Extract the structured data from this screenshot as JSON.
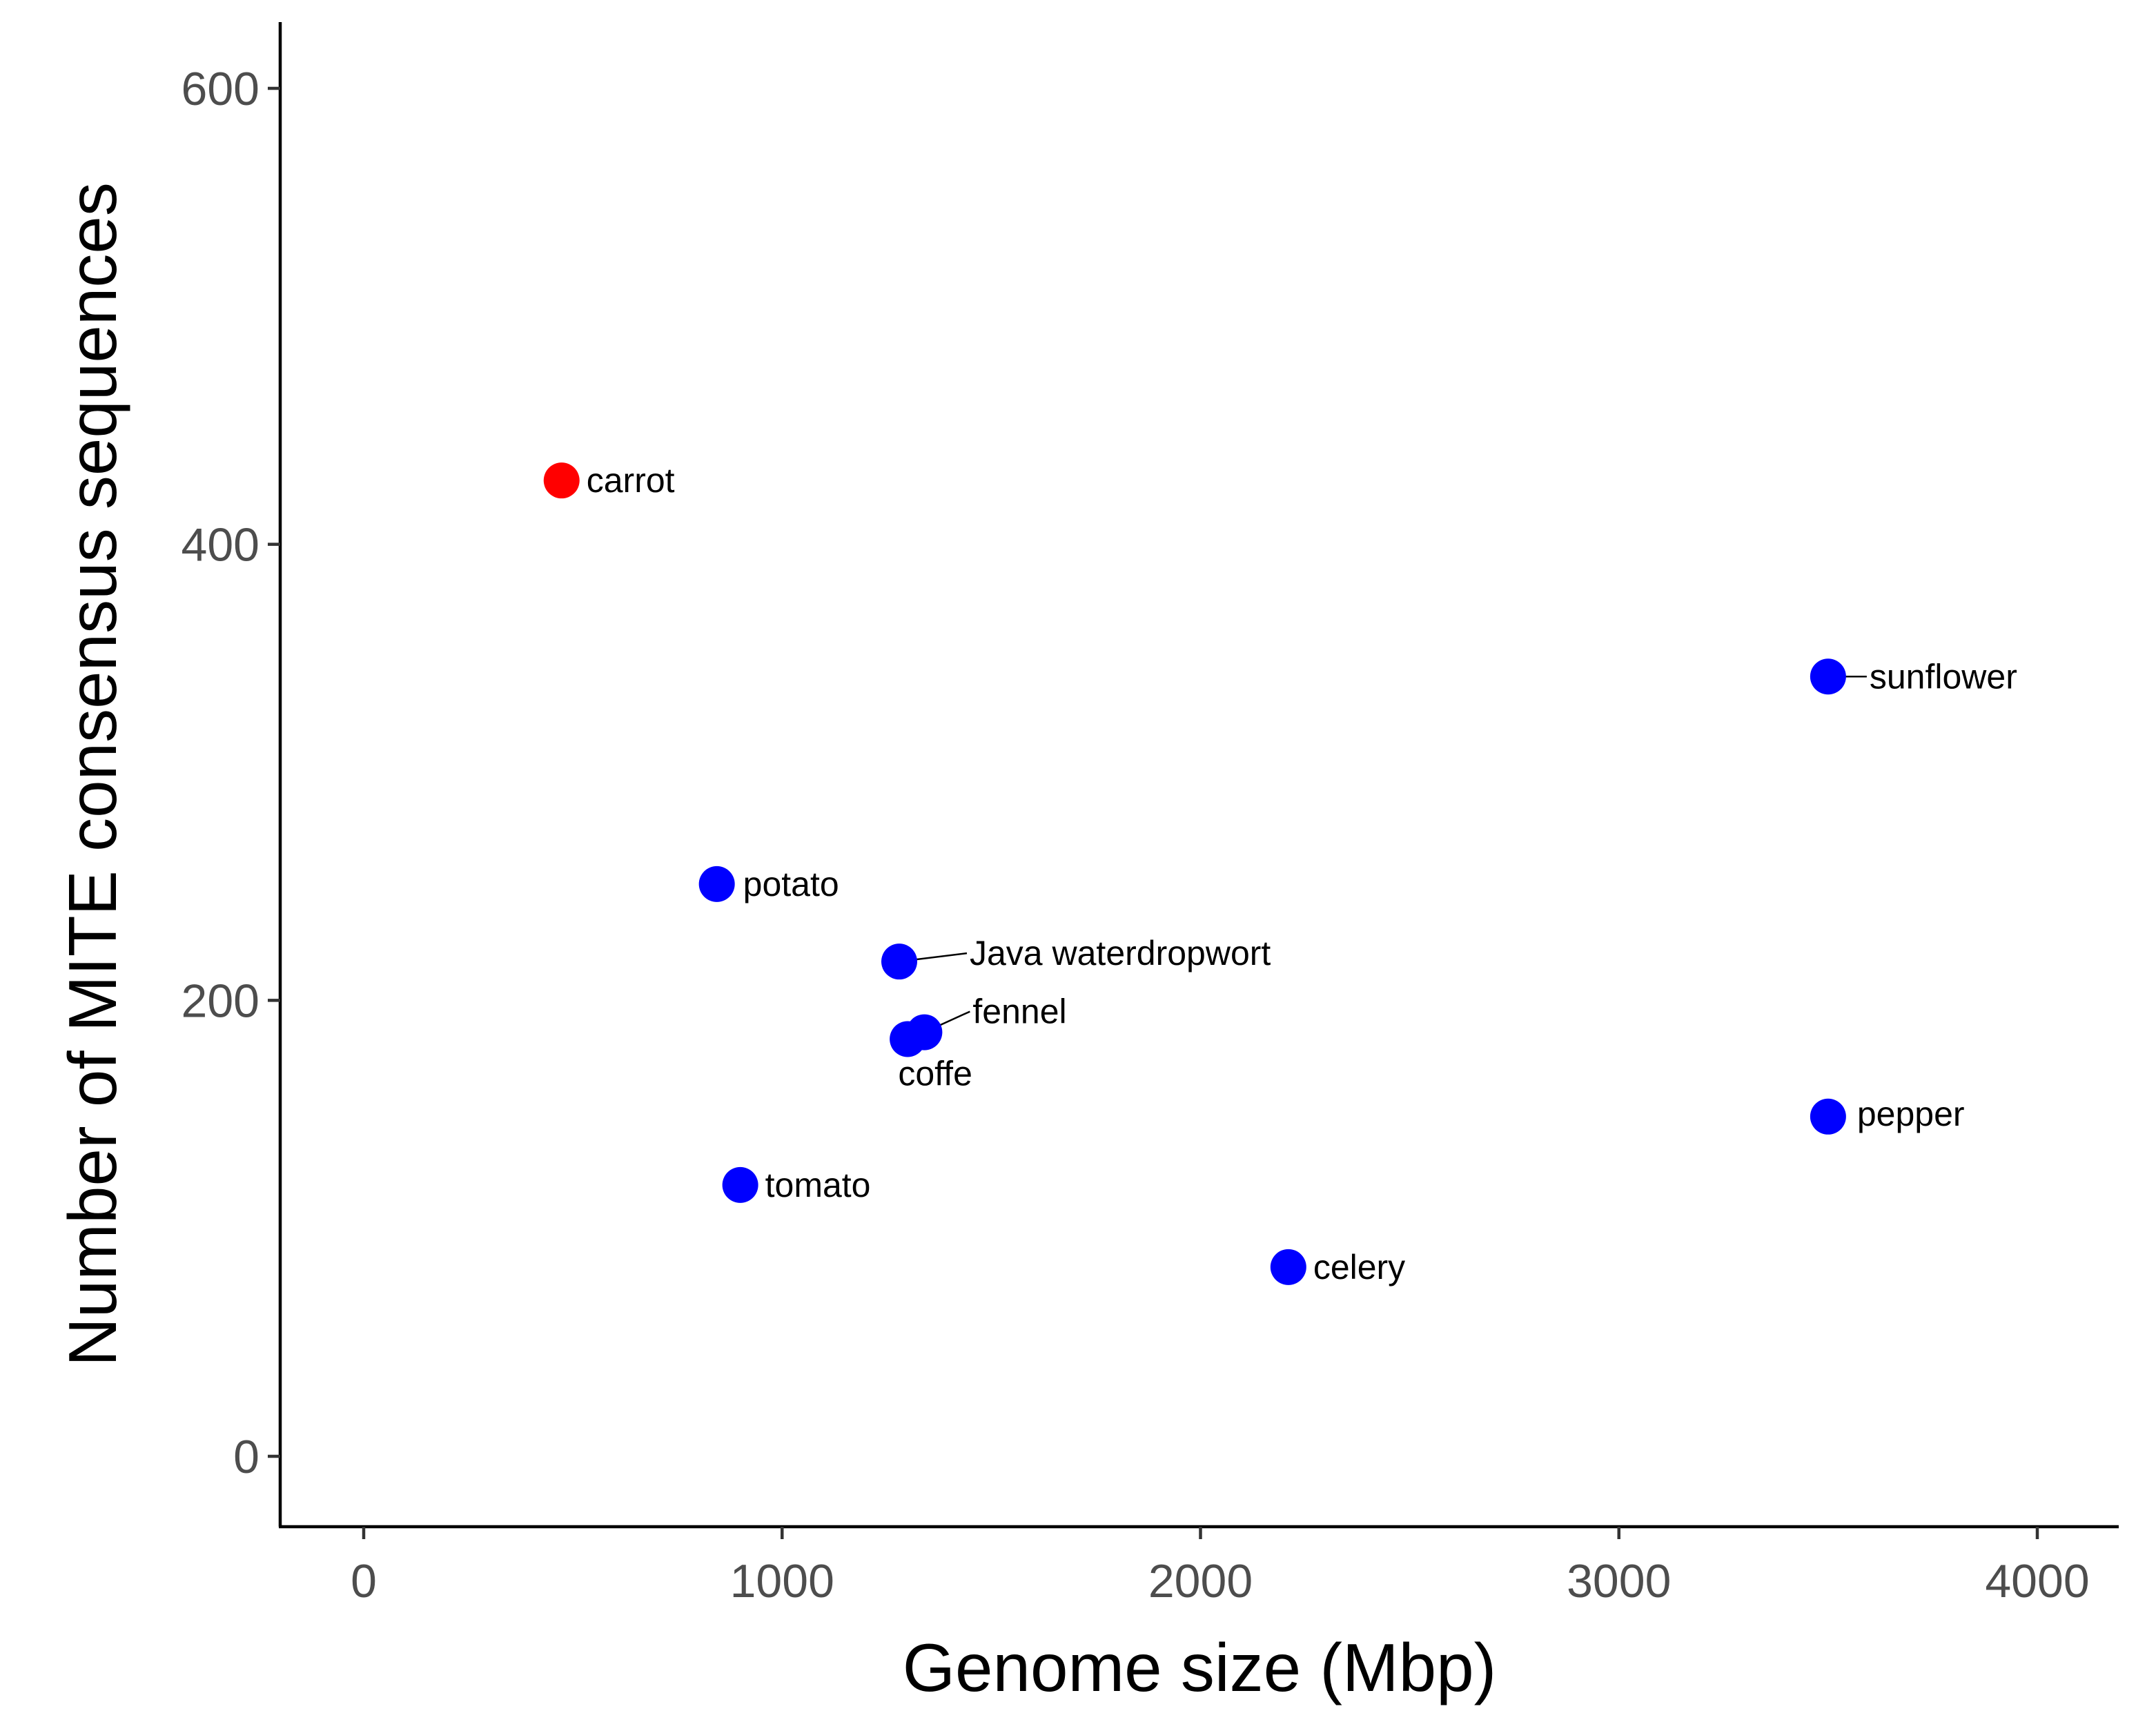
{
  "chart_data": {
    "type": "scatter",
    "title": "",
    "xlabel": "Genome size (Mbp)",
    "ylabel": "Number of MITE consensus sequences",
    "xlim": [
      -200,
      4200
    ],
    "ylim": [
      -30,
      630
    ],
    "xticks": [
      0,
      1000,
      2000,
      3000,
      4000
    ],
    "yticks": [
      0,
      200,
      400,
      600
    ],
    "grid": false,
    "legend": "none",
    "colors": {
      "highlight": "#ff0000",
      "default": "#0000ff"
    },
    "points": [
      {
        "name": "carrot",
        "x": 473,
        "y": 428,
        "group": "highlight"
      },
      {
        "name": "sunflower",
        "x": 3500,
        "y": 342,
        "group": "default"
      },
      {
        "name": "potato",
        "x": 844,
        "y": 251,
        "group": "default"
      },
      {
        "name": "Java waterdropwort",
        "x": 1280,
        "y": 217,
        "group": "default"
      },
      {
        "name": "fennel",
        "x": 1340,
        "y": 186,
        "group": "default"
      },
      {
        "name": "coffe",
        "x": 1300,
        "y": 183,
        "group": "default"
      },
      {
        "name": "pepper",
        "x": 3500,
        "y": 149,
        "group": "default"
      },
      {
        "name": "tomato",
        "x": 900,
        "y": 119,
        "group": "default"
      },
      {
        "name": "celery",
        "x": 2210,
        "y": 83,
        "group": "default"
      }
    ]
  }
}
